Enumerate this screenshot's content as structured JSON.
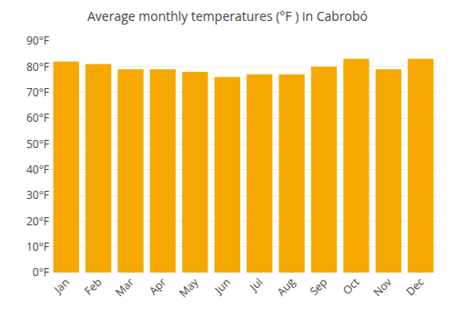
{
  "chart_data": {
    "type": "bar",
    "title": "Average monthly temperatures (°F ) in Cabrobó",
    "categories": [
      "Jan",
      "Feb",
      "Mar",
      "Apr",
      "May",
      "Jun",
      "Jul",
      "Aug",
      "Sep",
      "Oct",
      "Nov",
      "Dec"
    ],
    "values": [
      82,
      81,
      79,
      79,
      78,
      76,
      77,
      77,
      80,
      83,
      79,
      83
    ],
    "color": "#F5A800",
    "ylim": [
      0,
      90
    ],
    "yticks": [
      {
        "value": 0,
        "label": "0°F"
      },
      {
        "value": 10,
        "label": "10°F"
      },
      {
        "value": 20,
        "label": "20°F"
      },
      {
        "value": 30,
        "label": "30°F"
      },
      {
        "value": 40,
        "label": "40°F"
      },
      {
        "value": 50,
        "label": "50°F"
      },
      {
        "value": 60,
        "label": "60°F"
      },
      {
        "value": 70,
        "label": "70°F"
      },
      {
        "value": 80,
        "label": "80°F"
      },
      {
        "value": 90,
        "label": "90°F"
      }
    ],
    "grid": true
  }
}
